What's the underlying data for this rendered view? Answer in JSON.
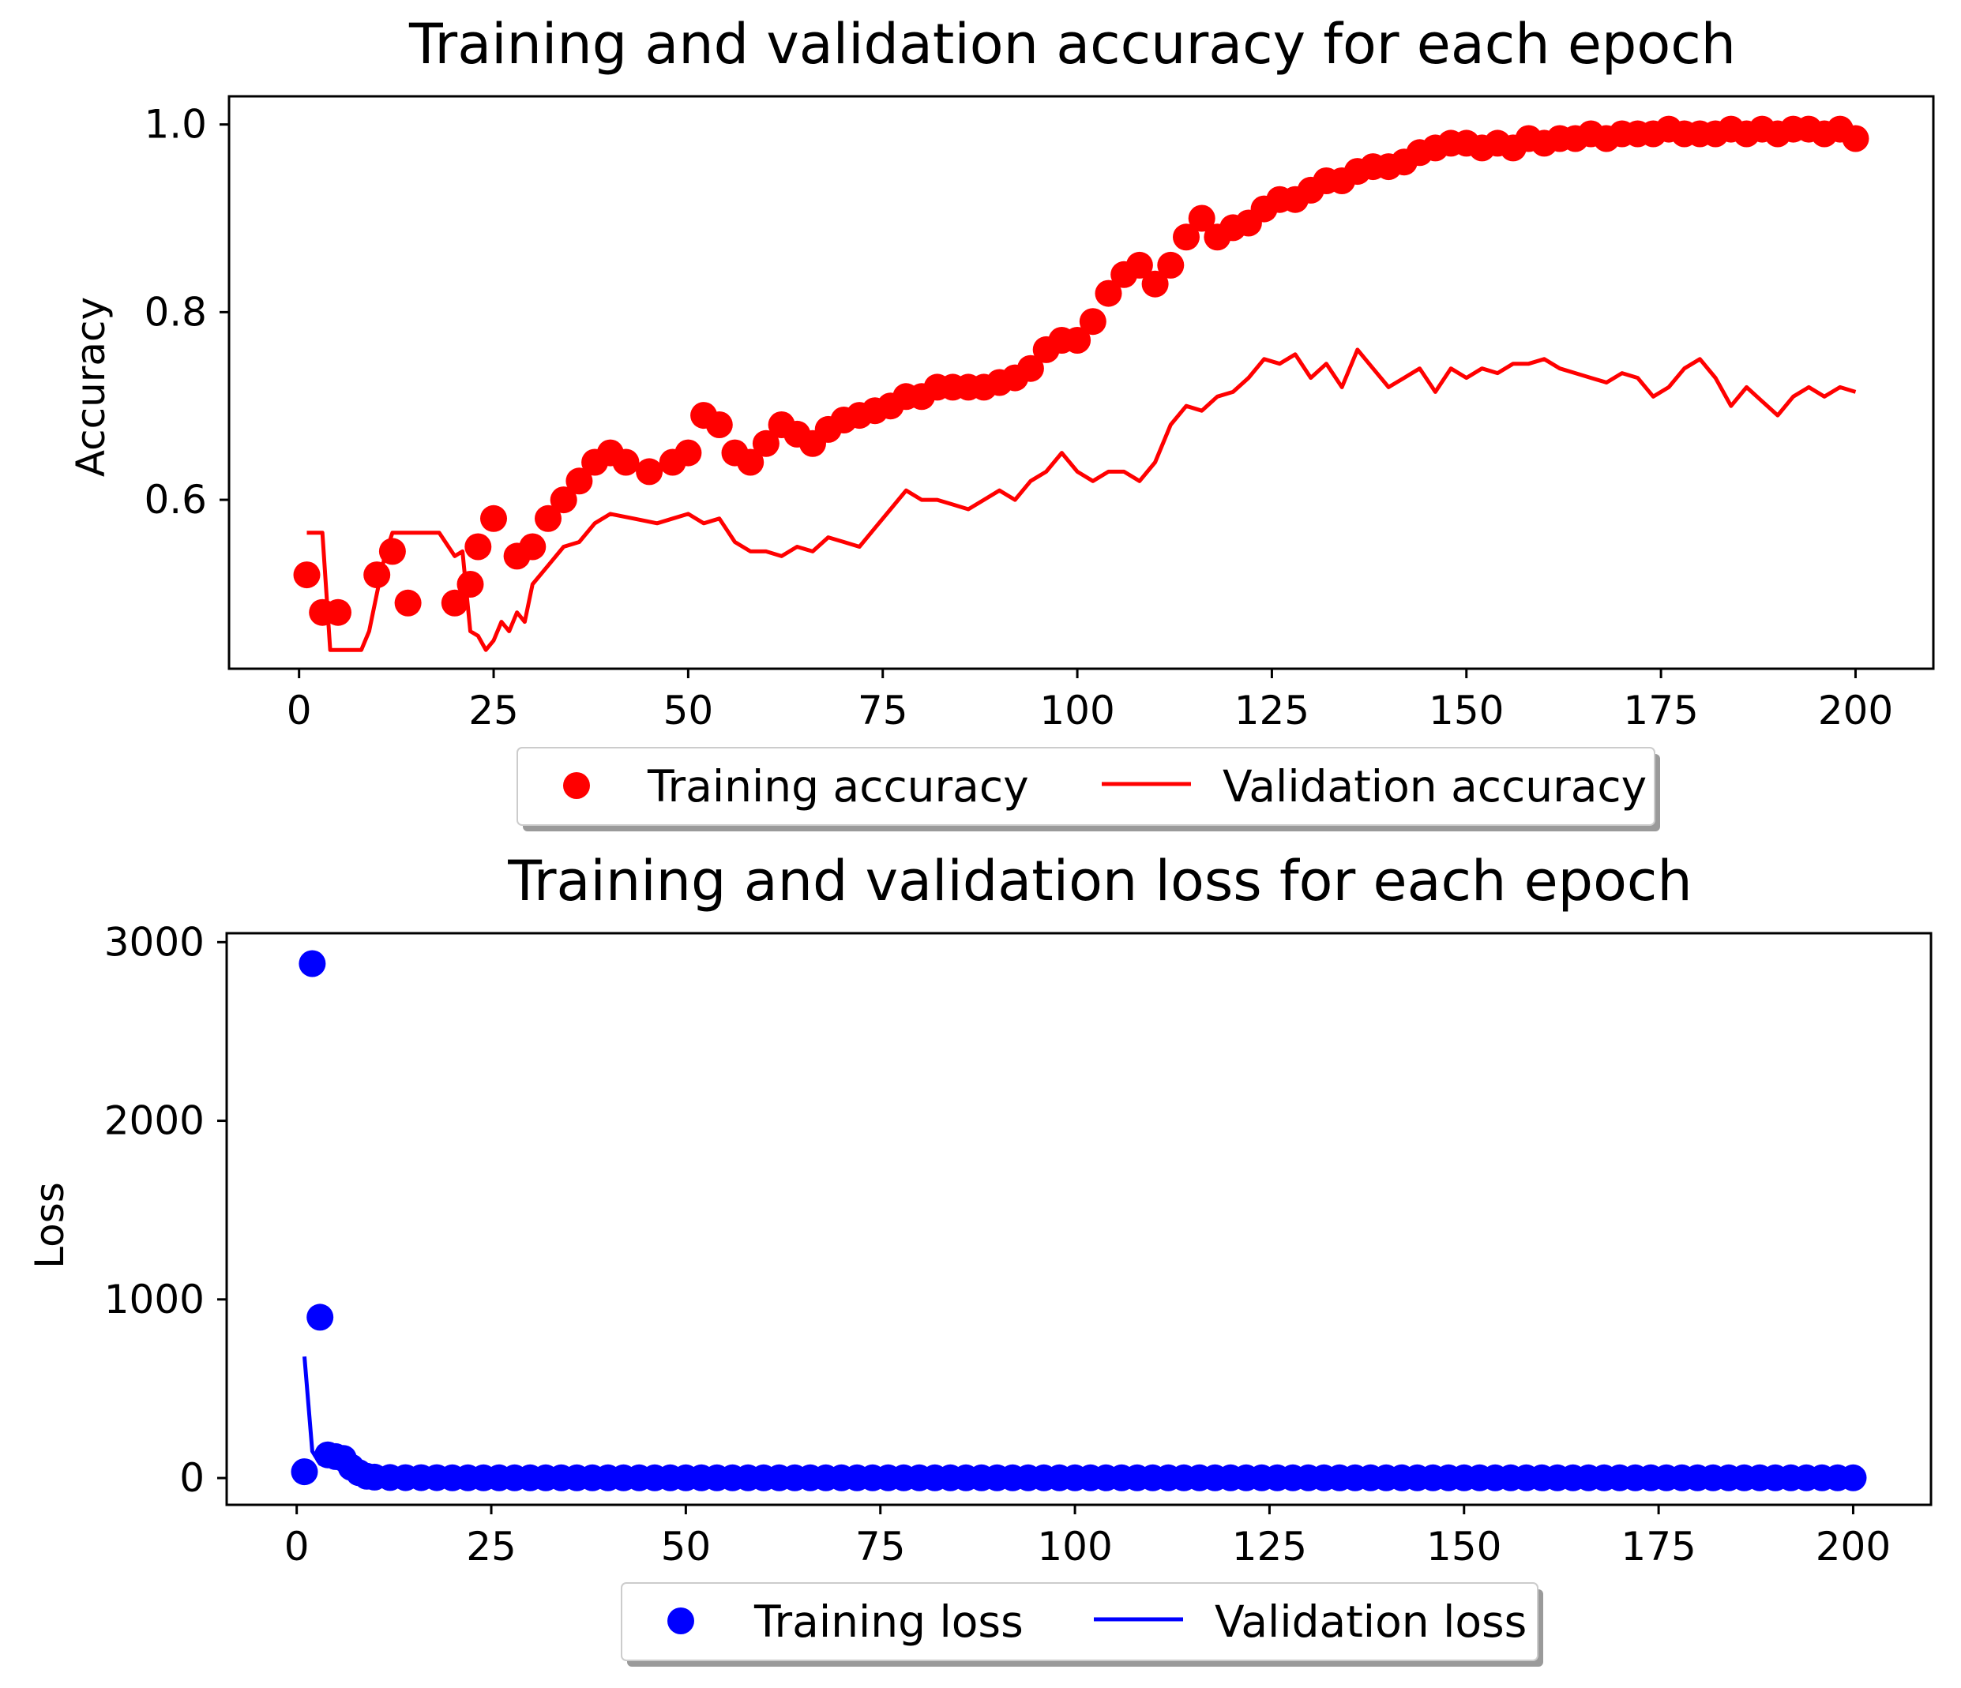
{
  "chart_data": [
    {
      "type": "line",
      "title": "Training and validation accuracy for each epoch",
      "xlabel": "",
      "ylabel": "Accuracy",
      "xlim": [
        -9,
        210
      ],
      "ylim": [
        0.42,
        1.03
      ],
      "xticks": [
        0,
        25,
        50,
        75,
        100,
        125,
        150,
        175,
        200
      ],
      "xtick_labels": [
        "0",
        "25",
        "50",
        "75",
        "100",
        "125",
        "150",
        "175",
        "200"
      ],
      "yticks": [
        0.6,
        0.8,
        1.0
      ],
      "ytick_labels": [
        "0.6",
        "0.8",
        "1.0"
      ],
      "grid": false,
      "legend_position": "below",
      "series": [
        {
          "name": "Training accuracy",
          "style": "markers",
          "color": "#ff0000",
          "x": [
            1,
            3,
            5,
            10,
            12,
            14,
            20,
            22,
            23,
            25,
            28,
            30,
            32,
            34,
            36,
            38,
            40,
            42,
            45,
            48,
            50,
            52,
            54,
            56,
            58,
            60,
            62,
            64,
            66,
            68,
            70,
            72,
            74,
            76,
            78,
            80,
            82,
            84,
            86,
            88,
            90,
            92,
            94,
            96,
            98,
            100,
            102,
            104,
            106,
            108,
            110,
            112,
            114,
            116,
            118,
            120,
            122,
            124,
            126,
            128,
            130,
            132,
            134,
            136,
            138,
            140,
            142,
            144,
            146,
            148,
            150,
            152,
            154,
            156,
            158,
            160,
            162,
            164,
            166,
            168,
            170,
            172,
            174,
            176,
            178,
            180,
            182,
            184,
            186,
            188,
            190,
            192,
            194,
            196,
            198,
            200
          ],
          "values": [
            0.52,
            0.48,
            0.48,
            0.52,
            0.545,
            0.49,
            0.49,
            0.51,
            0.55,
            0.58,
            0.54,
            0.55,
            0.58,
            0.6,
            0.62,
            0.64,
            0.65,
            0.64,
            0.63,
            0.64,
            0.65,
            0.69,
            0.68,
            0.65,
            0.64,
            0.66,
            0.68,
            0.67,
            0.66,
            0.675,
            0.685,
            0.69,
            0.695,
            0.7,
            0.71,
            0.71,
            0.72,
            0.72,
            0.72,
            0.72,
            0.725,
            0.73,
            0.74,
            0.76,
            0.77,
            0.77,
            0.79,
            0.82,
            0.84,
            0.85,
            0.83,
            0.85,
            0.88,
            0.9,
            0.88,
            0.89,
            0.895,
            0.91,
            0.92,
            0.92,
            0.93,
            0.94,
            0.94,
            0.95,
            0.955,
            0.955,
            0.96,
            0.97,
            0.975,
            0.98,
            0.98,
            0.975,
            0.98,
            0.975,
            0.985,
            0.98,
            0.985,
            0.985,
            0.99,
            0.985,
            0.99,
            0.99,
            0.99,
            0.995,
            0.99,
            0.99,
            0.99,
            0.995,
            0.99,
            0.995,
            0.99,
            0.995,
            0.995,
            0.99,
            0.995,
            0.985
          ]
        },
        {
          "name": "Validation accuracy",
          "style": "line",
          "color": "#ff0000",
          "x": [
            1,
            3,
            4,
            5,
            8,
            9,
            10,
            11,
            12,
            13,
            18,
            20,
            21,
            22,
            23,
            24,
            25,
            26,
            27,
            28,
            29,
            30,
            32,
            34,
            36,
            38,
            40,
            43,
            46,
            48,
            50,
            52,
            54,
            56,
            58,
            60,
            62,
            64,
            66,
            68,
            70,
            72,
            74,
            76,
            78,
            80,
            82,
            84,
            86,
            88,
            90,
            92,
            94,
            96,
            98,
            100,
            102,
            104,
            106,
            108,
            110,
            112,
            114,
            116,
            118,
            120,
            122,
            124,
            126,
            128,
            130,
            132,
            134,
            136,
            138,
            140,
            142,
            144,
            146,
            148,
            150,
            152,
            154,
            156,
            158,
            160,
            162,
            164,
            166,
            168,
            170,
            172,
            174,
            176,
            178,
            180,
            182,
            184,
            186,
            188,
            190,
            192,
            194,
            196,
            198,
            200
          ],
          "values": [
            0.565,
            0.565,
            0.44,
            0.44,
            0.44,
            0.46,
            0.5,
            0.54,
            0.565,
            0.565,
            0.565,
            0.54,
            0.545,
            0.46,
            0.455,
            0.44,
            0.45,
            0.47,
            0.46,
            0.48,
            0.47,
            0.51,
            0.53,
            0.55,
            0.555,
            0.575,
            0.585,
            0.58,
            0.575,
            0.58,
            0.585,
            0.575,
            0.58,
            0.555,
            0.545,
            0.545,
            0.54,
            0.55,
            0.545,
            0.56,
            0.555,
            0.55,
            0.57,
            0.59,
            0.61,
            0.6,
            0.6,
            0.595,
            0.59,
            0.6,
            0.61,
            0.6,
            0.62,
            0.63,
            0.65,
            0.63,
            0.62,
            0.63,
            0.63,
            0.62,
            0.64,
            0.68,
            0.7,
            0.695,
            0.71,
            0.715,
            0.73,
            0.75,
            0.745,
            0.755,
            0.73,
            0.745,
            0.72,
            0.76,
            0.74,
            0.72,
            0.73,
            0.74,
            0.715,
            0.74,
            0.73,
            0.74,
            0.735,
            0.745,
            0.745,
            0.75,
            0.74,
            0.735,
            0.73,
            0.725,
            0.735,
            0.73,
            0.71,
            0.72,
            0.74,
            0.75,
            0.73,
            0.7,
            0.72,
            0.705,
            0.69,
            0.71,
            0.72,
            0.71,
            0.72,
            0.715
          ]
        }
      ]
    },
    {
      "type": "line",
      "title": "Training and validation loss for each epoch",
      "xlabel": "",
      "ylabel": "Loss",
      "xlim": [
        -9,
        210
      ],
      "ylim": [
        -150,
        3050
      ],
      "xticks": [
        0,
        25,
        50,
        75,
        100,
        125,
        150,
        175,
        200
      ],
      "xtick_labels": [
        "0",
        "25",
        "50",
        "75",
        "100",
        "125",
        "150",
        "175",
        "200"
      ],
      "yticks": [
        0,
        1000,
        2000,
        3000
      ],
      "ytick_labels": [
        "0",
        "1000",
        "2000",
        "3000"
      ],
      "grid": false,
      "legend_position": "below",
      "series": [
        {
          "name": "Training loss",
          "style": "markers",
          "color": "#0000ff",
          "x": [
            1,
            2,
            3,
            4,
            5,
            6,
            7,
            8,
            9,
            10,
            12,
            14,
            16,
            18,
            20,
            22,
            24,
            26,
            28,
            30,
            32,
            34,
            36,
            38,
            40,
            42,
            44,
            46,
            48,
            50,
            52,
            54,
            56,
            58,
            60,
            62,
            64,
            66,
            68,
            70,
            72,
            74,
            76,
            78,
            80,
            82,
            84,
            86,
            88,
            90,
            92,
            94,
            96,
            98,
            100,
            102,
            104,
            106,
            108,
            110,
            112,
            114,
            116,
            118,
            120,
            122,
            124,
            126,
            128,
            130,
            132,
            134,
            136,
            138,
            140,
            142,
            144,
            146,
            148,
            150,
            152,
            154,
            156,
            158,
            160,
            162,
            164,
            166,
            168,
            170,
            172,
            174,
            176,
            178,
            180,
            182,
            184,
            186,
            188,
            190,
            192,
            194,
            196,
            198,
            200
          ],
          "values": [
            35,
            2880,
            900,
            130,
            120,
            110,
            60,
            30,
            10,
            5,
            3,
            2,
            2,
            2,
            1,
            1,
            1,
            1,
            1,
            1,
            1,
            1,
            1,
            1,
            1,
            1,
            1,
            1,
            1,
            1,
            1,
            1,
            1,
            1,
            1,
            1,
            1,
            1,
            1,
            1,
            1,
            1,
            1,
            1,
            1,
            1,
            1,
            1,
            1,
            1,
            1,
            1,
            1,
            1,
            1,
            1,
            1,
            1,
            1,
            1,
            1,
            1,
            1,
            1,
            1,
            1,
            1,
            1,
            1,
            1,
            1,
            1,
            1,
            1,
            1,
            1,
            1,
            1,
            1,
            1,
            1,
            1,
            1,
            1,
            1,
            1,
            1,
            1,
            1,
            1,
            1,
            1,
            1,
            1,
            1,
            1,
            1,
            1,
            1,
            1,
            1,
            1,
            1,
            1,
            1
          ]
        },
        {
          "name": "Validation loss",
          "style": "line",
          "color": "#0000ff",
          "x": [
            1,
            2,
            3,
            4,
            5,
            6,
            7,
            8,
            9,
            10,
            15,
            20,
            40,
            60,
            80,
            100,
            120,
            140,
            160,
            180,
            200
          ],
          "values": [
            680,
            150,
            80,
            70,
            60,
            50,
            30,
            15,
            5,
            3,
            2,
            1,
            1,
            1,
            1,
            1,
            1,
            1,
            1,
            1,
            1
          ]
        }
      ]
    }
  ]
}
